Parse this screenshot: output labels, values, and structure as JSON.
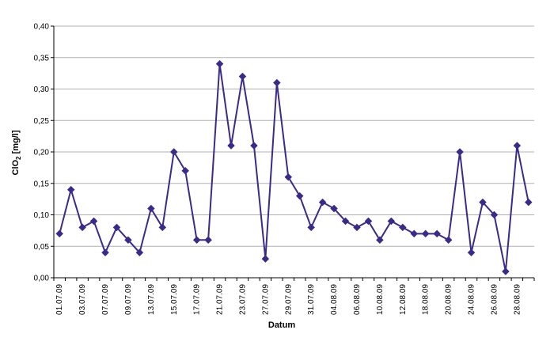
{
  "chart_data": {
    "type": "line",
    "xlabel": "Datum",
    "ylabel_main": "ClO",
    "ylabel_sub": "2",
    "ylabel_unit": " [mg/l]",
    "ylim": [
      0,
      0.4
    ],
    "y_ticks": [
      "0,00",
      "0,05",
      "0,10",
      "0,15",
      "0,20",
      "0,25",
      "0,30",
      "0,35",
      "0,40"
    ],
    "x_ticks": [
      "01.07.09",
      "03.07.09",
      "07.07.09",
      "09.07.09",
      "13.07.09",
      "15.07.09",
      "17.07.09",
      "21.07.09",
      "23.07.09",
      "27.07.09",
      "29.07.09",
      "31.07.09",
      "04.08.09",
      "06.08.09",
      "10.08.09",
      "12.08.09",
      "18.08.09",
      "20.08.09",
      "24.08.09",
      "26.08.09",
      "28.08.09"
    ],
    "grid": true,
    "series": [
      {
        "color": "#3a2a8a",
        "marker": "diamond",
        "values": [
          0.07,
          0.14,
          0.08,
          0.09,
          0.04,
          0.08,
          0.06,
          0.04,
          0.11,
          0.08,
          0.2,
          0.17,
          0.06,
          0.06,
          0.34,
          0.21,
          0.32,
          0.21,
          0.03,
          0.31,
          0.16,
          0.13,
          0.08,
          0.12,
          0.11,
          0.09,
          0.08,
          0.09,
          0.06,
          0.09,
          0.08,
          0.07,
          0.07,
          0.07,
          0.06,
          0.2,
          0.04,
          0.12,
          0.1,
          0.01,
          0.21,
          0.12
        ]
      }
    ]
  }
}
